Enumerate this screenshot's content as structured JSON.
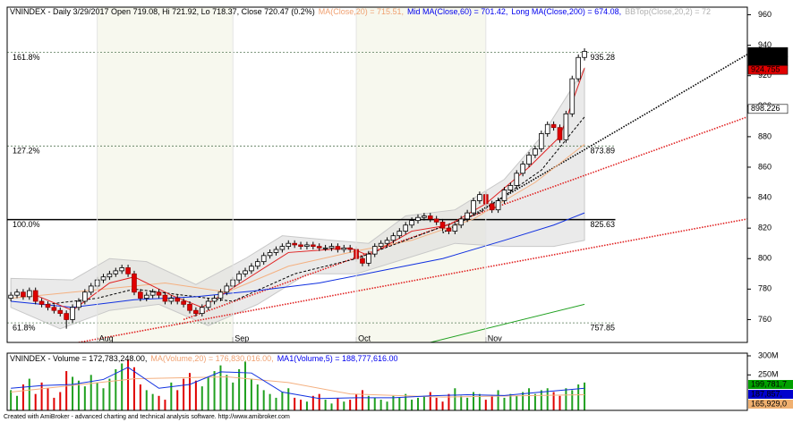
{
  "chart_data": {
    "type": "candlestick",
    "title_segments": [
      {
        "text": "VNINDEX - Daily 3/29/2017 Open 719.08, Hi 721.92, Lo 718.37, Close 720.47 (0.2%)",
        "color": "#000000"
      },
      {
        "text": "MA(Close,20) = 715.51,",
        "color": "#f0a070"
      },
      {
        "text": "Mid MA(Close,60) = 701.42,",
        "color": "#0000ee"
      },
      {
        "text": "Long MA(Close,200) = 674.08,",
        "color": "#0000ee"
      },
      {
        "text": "BBTop(Close,20,2) = 72",
        "color": "#b0b0b0"
      }
    ],
    "xlim": [
      -0.6,
      119.4
    ],
    "ylim": [
      745,
      965
    ],
    "yticks": [
      760,
      780,
      800,
      820,
      840,
      860,
      880,
      900,
      920,
      940,
      960
    ],
    "xticks": [
      {
        "value": 14,
        "label": "Aug"
      },
      {
        "value": 36,
        "label": "Sep"
      },
      {
        "value": 56,
        "label": "Oct"
      },
      {
        "value": 77,
        "label": "Nov"
      }
    ],
    "up_color": "#ffffff",
    "down_color": "#e00000",
    "open": [
      774,
      776,
      778,
      775,
      779,
      772,
      770,
      768,
      766,
      764,
      760,
      768,
      772,
      778,
      782,
      786,
      788,
      790,
      792,
      794,
      790,
      778,
      774,
      776,
      778,
      776,
      772,
      774,
      772,
      770,
      766,
      764,
      768,
      772,
      774,
      778,
      782,
      786,
      790,
      792,
      795,
      798,
      802,
      804,
      806,
      808,
      810,
      809,
      808,
      809,
      808,
      807,
      807,
      808,
      806,
      807,
      806,
      800,
      797,
      803,
      808,
      810,
      812,
      815,
      818,
      822,
      825,
      827,
      828,
      826,
      824,
      820,
      818,
      822,
      826,
      830,
      838,
      842,
      836,
      832,
      838,
      845,
      848,
      856,
      862,
      868,
      872,
      882,
      888,
      886,
      878,
      895,
      918,
      932
    ],
    "high": [
      778,
      780,
      780,
      781,
      781,
      774,
      772,
      770,
      768,
      766,
      770,
      774,
      780,
      784,
      788,
      790,
      792,
      794,
      796,
      796,
      792,
      780,
      778,
      780,
      780,
      778,
      776,
      776,
      774,
      772,
      768,
      770,
      774,
      776,
      780,
      784,
      788,
      792,
      794,
      797,
      800,
      804,
      806,
      808,
      810,
      812,
      812,
      811,
      811,
      811,
      810,
      809,
      810,
      810,
      809,
      809,
      808,
      802,
      805,
      810,
      812,
      814,
      817,
      820,
      824,
      827,
      829,
      830,
      830,
      828,
      826,
      822,
      824,
      828,
      832,
      840,
      844,
      844,
      838,
      840,
      847,
      850,
      858,
      864,
      870,
      874,
      884,
      890,
      890,
      888,
      897,
      920,
      934,
      938
    ],
    "low": [
      772,
      774,
      773,
      773,
      770,
      768,
      766,
      764,
      762,
      754,
      758,
      766,
      770,
      776,
      780,
      784,
      786,
      788,
      790,
      788,
      776,
      772,
      772,
      774,
      774,
      770,
      770,
      770,
      768,
      764,
      762,
      762,
      766,
      770,
      772,
      776,
      780,
      784,
      788,
      790,
      793,
      796,
      800,
      802,
      804,
      806,
      807,
      806,
      806,
      806,
      805,
      805,
      805,
      804,
      804,
      804,
      798,
      795,
      795,
      801,
      806,
      808,
      810,
      813,
      816,
      820,
      823,
      825,
      824,
      822,
      818,
      816,
      816,
      820,
      824,
      828,
      836,
      834,
      830,
      830,
      836,
      843,
      846,
      854,
      860,
      866,
      870,
      880,
      884,
      876,
      876,
      893,
      916,
      930
    ],
    "close": [
      776,
      778,
      775,
      779,
      772,
      770,
      768,
      766,
      764,
      760,
      768,
      772,
      778,
      782,
      786,
      788,
      790,
      792,
      794,
      790,
      778,
      774,
      776,
      778,
      776,
      772,
      774,
      772,
      770,
      766,
      764,
      768,
      772,
      774,
      778,
      782,
      786,
      790,
      792,
      795,
      798,
      802,
      804,
      806,
      808,
      810,
      809,
      808,
      809,
      808,
      807,
      807,
      808,
      806,
      807,
      806,
      800,
      797,
      803,
      808,
      810,
      812,
      815,
      818,
      822,
      825,
      827,
      828,
      826,
      824,
      820,
      818,
      822,
      826,
      830,
      838,
      842,
      836,
      832,
      838,
      845,
      848,
      856,
      862,
      868,
      872,
      882,
      888,
      886,
      878,
      895,
      918,
      932,
      936
    ],
    "band": {
      "color": "#dcdcdc",
      "upper": [
        [
          0,
          787
        ],
        [
          10,
          786
        ],
        [
          16,
          800
        ],
        [
          22,
          798
        ],
        [
          30,
          783
        ],
        [
          38,
          800
        ],
        [
          44,
          815
        ],
        [
          52,
          812
        ],
        [
          58,
          810
        ],
        [
          64,
          828
        ],
        [
          72,
          832
        ],
        [
          80,
          852
        ],
        [
          86,
          880
        ],
        [
          93,
          925
        ]
      ],
      "lower": [
        [
          0,
          768
        ],
        [
          8,
          754
        ],
        [
          16,
          766
        ],
        [
          24,
          770
        ],
        [
          32,
          756
        ],
        [
          40,
          770
        ],
        [
          48,
          790
        ],
        [
          56,
          790
        ],
        [
          64,
          800
        ],
        [
          72,
          810
        ],
        [
          80,
          808
        ],
        [
          88,
          808
        ],
        [
          93,
          812
        ]
      ]
    },
    "lines": [
      {
        "color": "#f4b080",
        "dash": "",
        "points": [
          [
            0,
            774
          ],
          [
            15,
            780
          ],
          [
            25,
            784
          ],
          [
            35,
            778
          ],
          [
            45,
            795
          ],
          [
            56,
            805
          ],
          [
            65,
            812
          ],
          [
            75,
            826
          ],
          [
            85,
            850
          ],
          [
            93,
            875
          ]
        ]
      },
      {
        "color": "#000000",
        "dash": "3,2",
        "points": [
          [
            6,
            770
          ],
          [
            14,
            774
          ],
          [
            20,
            780
          ],
          [
            28,
            776
          ],
          [
            36,
            772
          ],
          [
            46,
            790
          ],
          [
            56,
            800
          ],
          [
            66,
            815
          ],
          [
            76,
            830
          ],
          [
            86,
            858
          ],
          [
            93,
            893
          ]
        ]
      },
      {
        "color": "#1030e0",
        "dash": "",
        "points": [
          [
            0,
            772
          ],
          [
            10,
            768
          ],
          [
            20,
            773
          ],
          [
            30,
            775
          ],
          [
            40,
            779
          ],
          [
            50,
            784
          ],
          [
            60,
            792
          ],
          [
            70,
            800
          ],
          [
            80,
            812
          ],
          [
            88,
            822
          ],
          [
            93,
            830
          ]
        ]
      },
      {
        "color": "#20a020",
        "dash": "",
        "points": [
          [
            68,
            745
          ],
          [
            93,
            770
          ]
        ]
      },
      {
        "color": "#e02020",
        "dash": "",
        "points": [
          [
            4,
            776
          ],
          [
            10,
            766
          ],
          [
            16,
            784
          ],
          [
            20,
            788
          ],
          [
            26,
            776
          ],
          [
            31,
            768
          ],
          [
            38,
            786
          ],
          [
            45,
            804
          ],
          [
            55,
            807
          ],
          [
            58,
            802
          ],
          [
            65,
            818
          ],
          [
            71,
            822
          ],
          [
            77,
            836
          ],
          [
            84,
            860
          ],
          [
            89,
            880
          ],
          [
            93,
            925
          ]
        ]
      }
    ],
    "trendlines": [
      {
        "color": "#000000",
        "points": [
          [
            70,
            817
          ],
          [
            119.4,
            934
          ]
        ]
      },
      {
        "color": "#e02020",
        "points": [
          [
            28,
            760
          ],
          [
            119.4,
            893
          ]
        ]
      },
      {
        "color": "#e02020",
        "points": [
          [
            11,
            745
          ],
          [
            119.4,
            826
          ]
        ]
      }
    ],
    "fib_end": 98,
    "fib_levels": [
      {
        "label": "161.8%",
        "value": 935.28
      },
      {
        "label": "127.2%",
        "value": 873.89
      },
      {
        "label": "100.0%",
        "value": 825.63
      },
      {
        "label": "61.8%",
        "value": 757.85
      }
    ],
    "price_markers": [
      {
        "value": 935.57,
        "color": "#000000",
        "text_color": "#ffffff"
      },
      {
        "value": 935.57,
        "color": "#000000",
        "text_color": "#ffffff"
      },
      {
        "value": 924.755,
        "color": "#e00000",
        "text_color": "#000000"
      },
      {
        "value": 898.226,
        "color": "#ffffff",
        "text_color": "#000000"
      }
    ],
    "volume": {
      "title_segments": [
        {
          "text": "VNINDEX - Volume = 172,783,248.00,",
          "color": "#000000"
        },
        {
          "text": "MA(Volume,20) = 176,830,016.00,",
          "color": "#f0a070"
        },
        {
          "text": "MA1(Volume,5) = 188,777,616.00",
          "color": "#0000ee"
        }
      ],
      "ylim": [
        157000000,
        307000000
      ],
      "yticks": [
        {
          "value": 300000000,
          "label": "300M"
        },
        {
          "value": 250000000,
          "label": "250M"
        }
      ],
      "up_color": "#20a020",
      "down_color": "#e00000",
      "values": [
        210000000,
        195000000,
        225000000,
        240000000,
        200000000,
        230000000,
        215000000,
        190000000,
        205000000,
        260000000,
        245000000,
        235000000,
        220000000,
        250000000,
        230000000,
        215000000,
        240000000,
        265000000,
        280000000,
        290000000,
        270000000,
        225000000,
        210000000,
        200000000,
        195000000,
        185000000,
        230000000,
        210000000,
        240000000,
        255000000,
        235000000,
        220000000,
        245000000,
        260000000,
        275000000,
        250000000,
        230000000,
        265000000,
        285000000,
        240000000,
        225000000,
        210000000,
        200000000,
        190000000,
        205000000,
        215000000,
        190000000,
        185000000,
        180000000,
        195000000,
        200000000,
        185000000,
        175000000,
        190000000,
        180000000,
        185000000,
        200000000,
        210000000,
        195000000,
        190000000,
        185000000,
        180000000,
        195000000,
        190000000,
        200000000,
        185000000,
        190000000,
        195000000,
        205000000,
        190000000,
        180000000,
        200000000,
        215000000,
        195000000,
        190000000,
        205000000,
        200000000,
        185000000,
        195000000,
        210000000,
        190000000,
        200000000,
        195000000,
        205000000,
        215000000,
        200000000,
        210000000,
        215000000,
        205000000,
        195000000,
        215000000,
        210000000,
        225000000,
        230000000
      ],
      "lines": [
        {
          "color": "#f4b080",
          "points": [
            [
              0,
              205000000
            ],
            [
              20,
              240000000
            ],
            [
              35,
              245000000
            ],
            [
              45,
              230000000
            ],
            [
              55,
              200000000
            ],
            [
              70,
              192000000
            ],
            [
              93,
              198000000
            ]
          ]
        },
        {
          "color": "#1030e0",
          "points": [
            [
              0,
              215000000
            ],
            [
              5,
              222000000
            ],
            [
              10,
              225000000
            ],
            [
              15,
              238000000
            ],
            [
              19,
              270000000
            ],
            [
              24,
              215000000
            ],
            [
              29,
              225000000
            ],
            [
              34,
              258000000
            ],
            [
              39,
              255000000
            ],
            [
              44,
              205000000
            ],
            [
              50,
              188000000
            ],
            [
              56,
              190000000
            ],
            [
              62,
              190000000
            ],
            [
              68,
              195000000
            ],
            [
              74,
              198000000
            ],
            [
              80,
              196000000
            ],
            [
              86,
              205000000
            ],
            [
              93,
              215000000
            ]
          ]
        }
      ],
      "markers": [
        {
          "value": 199781700,
          "label": "199,781,7",
          "color": "#00a000",
          "text_color": "#ffffff"
        },
        {
          "value": 187857000,
          "label": "187,857,",
          "color": "#0000cc",
          "text_color": "#ffffff"
        },
        {
          "value": 165929000,
          "label": "165,929,0",
          "color": "#f0b070",
          "text_color": "#000000"
        }
      ]
    },
    "footer": "Created with AmiBroker - advanced charting and technical analysis software. http://www.amibroker.com"
  }
}
